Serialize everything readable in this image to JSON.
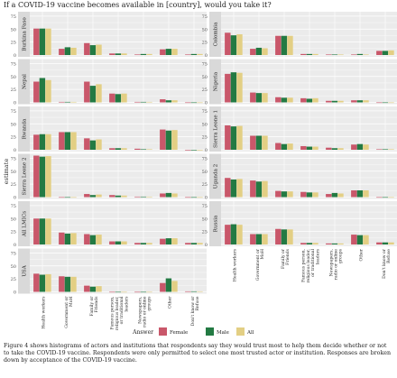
{
  "page": {
    "title": "If a COVID-19 vaccine becomes available in [country], would you take it?",
    "caption": "Figure 4 shows histograms of actors and institutions that respondents say they would trust most to help them decide whether or not to take the COVID-19 vaccine. Respondents were only permitted to select one most trusted actor or institution. Responses are broken down by acceptance of the COVID-19 vaccine."
  },
  "chart_data": {
    "type": "bar",
    "ylabel": "estimate",
    "ylim": [
      0,
      75
    ],
    "yticks": [
      0,
      25,
      50,
      75
    ],
    "categories": [
      "Health workers",
      "Government or MoH",
      "Family or Friends",
      "Famous person, religious leader, or traditional leaders",
      "Newspapers, radio or online groups",
      "Other",
      "Don't know or Refuse"
    ],
    "category_labels": [
      [
        "Health workers"
      ],
      [
        "Government or",
        "MoH"
      ],
      [
        "Family or",
        "Friends"
      ],
      [
        "Famous person,",
        "religious leader,",
        "or traditional",
        "leaders"
      ],
      [
        "Newspapers,",
        "radio or online",
        "groups"
      ],
      [
        "Other"
      ],
      [
        "Don't know or",
        "Refuse"
      ]
    ],
    "legend": {
      "title": "Answer",
      "position": "bottom",
      "entries": [
        "Female",
        "Male",
        "All"
      ]
    },
    "colors": {
      "Female": "#c9576a",
      "Male": "#237a43",
      "All": "#e3cf84"
    },
    "panels": [
      {
        "name": "Burkina Faso",
        "values": [
          [
            51,
            51,
            51
          ],
          [
            12,
            15,
            14
          ],
          [
            23,
            19,
            20
          ],
          [
            3,
            3,
            3
          ],
          [
            1,
            2,
            2
          ],
          [
            11,
            12,
            12
          ],
          [
            1,
            2,
            2
          ]
        ]
      },
      {
        "name": "Colombia",
        "values": [
          [
            43,
            38,
            40
          ],
          [
            12,
            14,
            13
          ],
          [
            37,
            37,
            37
          ],
          [
            2,
            2,
            2
          ],
          [
            1,
            1,
            1
          ],
          [
            1,
            2,
            1
          ],
          [
            8,
            8,
            9
          ]
        ]
      },
      {
        "name": "Nepal",
        "values": [
          [
            40,
            47,
            43
          ],
          [
            1,
            1,
            1
          ],
          [
            40,
            32,
            35
          ],
          [
            17,
            16,
            17
          ],
          [
            1,
            1,
            1
          ],
          [
            6,
            4,
            4
          ],
          [
            0,
            0,
            0
          ]
        ]
      },
      {
        "name": "Nigeria",
        "values": [
          [
            55,
            58,
            57
          ],
          [
            19,
            18,
            18
          ],
          [
            10,
            9,
            9
          ],
          [
            8,
            7,
            8
          ],
          [
            3,
            3,
            3
          ],
          [
            4,
            4,
            4
          ],
          [
            0,
            0,
            0
          ]
        ]
      },
      {
        "name": "Rwanda",
        "values": [
          [
            29,
            30,
            30
          ],
          [
            34,
            34,
            34
          ],
          [
            22,
            18,
            20
          ],
          [
            3,
            3,
            3
          ],
          [
            2,
            1,
            1
          ],
          [
            39,
            37,
            38
          ],
          [
            0,
            0,
            0
          ]
        ]
      },
      {
        "name": "Sierra Leone 1",
        "values": [
          [
            47,
            45,
            46
          ],
          [
            27,
            27,
            27
          ],
          [
            13,
            11,
            12
          ],
          [
            7,
            6,
            6
          ],
          [
            4,
            3,
            3
          ],
          [
            10,
            11,
            10
          ],
          [
            1,
            1,
            1
          ]
        ]
      },
      {
        "name": "Sierra Leone 2",
        "values": [
          [
            80,
            78,
            79
          ],
          [
            0,
            0,
            0
          ],
          [
            6,
            4,
            5
          ],
          [
            4,
            3,
            3
          ],
          [
            1,
            1,
            1
          ],
          [
            7,
            8,
            7
          ],
          [
            0,
            0,
            0
          ]
        ]
      },
      {
        "name": "Uganda 2",
        "values": [
          [
            37,
            34,
            35
          ],
          [
            32,
            30,
            31
          ],
          [
            12,
            11,
            11
          ],
          [
            10,
            9,
            9
          ],
          [
            6,
            8,
            7
          ],
          [
            13,
            13,
            13
          ],
          [
            0,
            0,
            0
          ]
        ]
      },
      {
        "name": "All LMICs",
        "values": [
          [
            50,
            50,
            50
          ],
          [
            23,
            21,
            22
          ],
          [
            20,
            18,
            19
          ],
          [
            6,
            6,
            6
          ],
          [
            3,
            3,
            3
          ],
          [
            11,
            12,
            12
          ],
          [
            3,
            3,
            3
          ]
        ]
      },
      {
        "name": "Russia",
        "values": [
          [
            38,
            39,
            38
          ],
          [
            20,
            20,
            20
          ],
          [
            30,
            29,
            29
          ],
          [
            3,
            3,
            3
          ],
          [
            2,
            2,
            2
          ],
          [
            19,
            18,
            18
          ],
          [
            4,
            4,
            4
          ]
        ]
      },
      {
        "name": "USA",
        "values": [
          [
            35,
            33,
            34
          ],
          [
            30,
            29,
            29
          ],
          [
            12,
            10,
            11
          ],
          [
            0,
            0,
            0
          ],
          [
            0,
            0,
            0
          ],
          [
            17,
            26,
            21
          ],
          [
            1,
            1,
            1
          ]
        ]
      }
    ]
  }
}
